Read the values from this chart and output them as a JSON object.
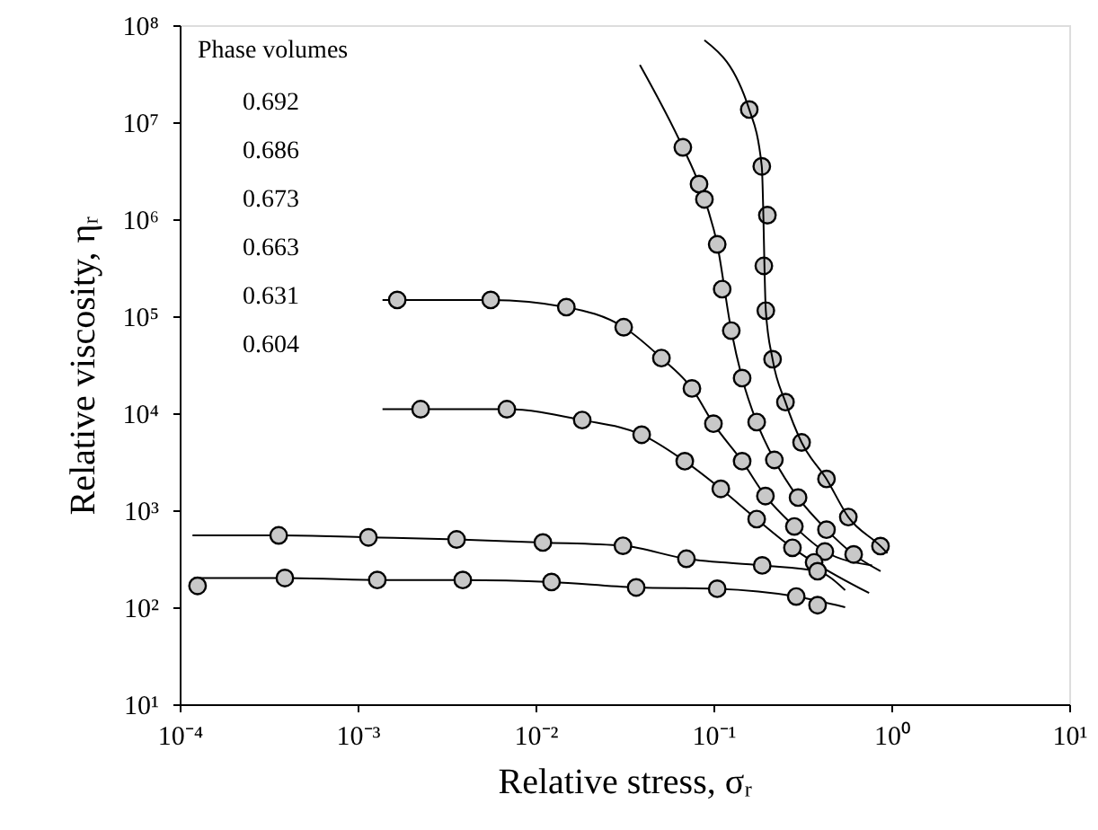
{
  "chart_data": {
    "type": "scatter",
    "xlabel": "Relative stress, σᵣ",
    "ylabel": "Relative viscosity, ηᵣ",
    "log": "xy",
    "grid": false,
    "annotations": [
      "Phase volumes",
      "0.692",
      "0.686",
      "0.673",
      "0.663",
      "0.631",
      "0.604"
    ],
    "xlim": [
      0.0001,
      10
    ],
    "ylim": [
      10,
      100000000
    ],
    "xticks": [
      {
        "value": 0.0001,
        "label": "10⁻⁴"
      },
      {
        "value": 0.001,
        "label": "10⁻³"
      },
      {
        "value": 0.01,
        "label": "10⁻²"
      },
      {
        "value": 0.1,
        "label": "10⁻¹"
      },
      {
        "value": 1,
        "label": "10⁰"
      },
      {
        "value": 10,
        "label": "10¹"
      }
    ],
    "yticks": [
      {
        "value": 10,
        "label": "10¹"
      },
      {
        "value": 100,
        "label": "10²"
      },
      {
        "value": 1000,
        "label": "10³"
      },
      {
        "value": 10000,
        "label": "10⁴"
      },
      {
        "value": 100000,
        "label": "10⁵"
      },
      {
        "value": 1000000,
        "label": "10⁶"
      },
      {
        "value": 10000000,
        "label": "10⁷"
      },
      {
        "value": 100000000,
        "label": "10⁸"
      }
    ],
    "series": [
      {
        "marker": "circle",
        "color": "#000000",
        "x": [
          0.159,
          0.187,
          0.201,
          0.192,
          0.197,
          0.215,
          0.254,
          0.313,
          0.432,
          0.573,
          0.869
        ],
        "values": [
          13500000,
          3500000,
          1100000,
          330000,
          114000,
          36000,
          13000,
          5000,
          2100,
          850,
          427
        ]
      },
      {
        "marker": "circle",
        "color": "#000000",
        "x": [
          0.0673,
          0.083,
          0.089,
          0.105,
          0.112,
          0.126,
          0.145,
          0.175,
          0.22,
          0.299,
          0.432,
          0.614
        ],
        "values": [
          5500000,
          2300000,
          1600000,
          550000,
          190000,
          71000,
          23000,
          8100,
          3300,
          1350,
          630,
          350
        ]
      },
      {
        "marker": "circle",
        "color": "#000000",
        "x": [
          0.00167,
          0.0056,
          0.0149,
          0.0313,
          0.051,
          0.0757,
          0.1,
          0.145,
          0.196,
          0.285,
          0.423
        ],
        "values": [
          147000,
          147000,
          124000,
          77000,
          37000,
          18000,
          7800,
          3200,
          1400,
          680,
          375
        ]
      },
      {
        "marker": "circle",
        "color": "#000000",
        "x": [
          0.00226,
          0.0069,
          0.0183,
          0.0395,
          0.069,
          0.11,
          0.175,
          0.278,
          0.368
        ],
        "values": [
          11000,
          11000,
          8500,
          6000,
          3200,
          1660,
          810,
          410,
          290
        ]
      },
      {
        "marker": "circle",
        "color": "#000000",
        "x": [
          0.00036,
          0.00115,
          0.0036,
          0.011,
          0.031,
          0.0705,
          0.188,
          0.385
        ],
        "values": [
          550,
          525,
          500,
          465,
          430,
          316,
          270,
          235
        ]
      },
      {
        "marker": "circle",
        "color": "#000000",
        "x": [
          0.000126,
          0.00039,
          0.00129,
          0.0039,
          0.0123,
          0.0368,
          0.105,
          0.292,
          0.385
        ],
        "values": [
          166,
          200,
          191,
          191,
          182,
          160,
          155,
          129,
          105
        ]
      },
      {
        "type": "line",
        "marker": "none",
        "line_style": "solid",
        "color": "#000000",
        "x": [
          0.089,
          0.159,
          0.187,
          0.197,
          0.215,
          0.254,
          0.313,
          0.432,
          0.573,
          0.869,
          0.95
        ],
        "values": [
          70000000,
          13500000,
          3500000,
          114000,
          36000,
          13000,
          5000,
          2100,
          850,
          427,
          360
        ]
      },
      {
        "type": "line",
        "marker": "none",
        "line_style": "solid",
        "color": "#000000",
        "x": [
          0.0386,
          0.0673,
          0.083,
          0.105,
          0.126,
          0.145,
          0.175,
          0.22,
          0.299,
          0.432,
          0.614,
          0.87
        ],
        "values": [
          39000000,
          5500000,
          2300000,
          550000,
          71000,
          23000,
          8100,
          3300,
          1350,
          630,
          350,
          235
        ]
      },
      {
        "type": "line",
        "marker": "none",
        "line_style": "solid",
        "color": "#000000",
        "x": [
          0.00138,
          0.00167,
          0.0056,
          0.0149,
          0.0313,
          0.051,
          0.0757,
          0.1,
          0.145,
          0.196,
          0.285,
          0.423,
          0.78
        ],
        "values": [
          147000,
          147000,
          147000,
          124000,
          77000,
          37000,
          18000,
          7800,
          3200,
          1400,
          680,
          375,
          270
        ]
      },
      {
        "type": "line",
        "marker": "none",
        "line_style": "solid",
        "color": "#000000",
        "x": [
          0.00138,
          0.00226,
          0.0069,
          0.0183,
          0.0395,
          0.069,
          0.11,
          0.175,
          0.278,
          0.368,
          0.75
        ],
        "values": [
          11000,
          11000,
          11000,
          8500,
          6000,
          3200,
          1660,
          810,
          410,
          290,
          140
        ]
      },
      {
        "type": "line",
        "marker": "none",
        "line_style": "solid",
        "color": "#000000",
        "x": [
          0.000118,
          0.00036,
          0.00115,
          0.0036,
          0.011,
          0.031,
          0.0705,
          0.188,
          0.385,
          0.55
        ],
        "values": [
          550,
          550,
          525,
          500,
          465,
          430,
          316,
          270,
          235,
          150
        ]
      },
      {
        "type": "line",
        "marker": "none",
        "line_style": "solid",
        "color": "#000000",
        "x": [
          0.00012,
          0.00039,
          0.00129,
          0.0039,
          0.0123,
          0.0368,
          0.105,
          0.292,
          0.55
        ],
        "values": [
          200,
          200,
          191,
          191,
          182,
          160,
          155,
          129,
          100
        ]
      }
    ]
  }
}
